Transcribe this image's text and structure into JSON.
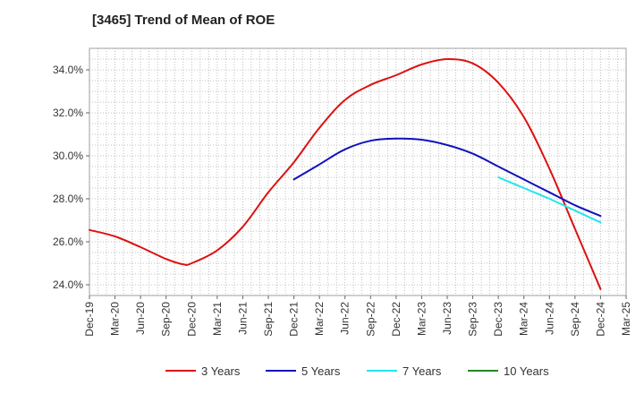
{
  "chart_data": {
    "type": "line",
    "title": "[3465]  Trend of Mean of ROE",
    "xlabel": "",
    "ylabel": "",
    "x_ticks": [
      "Dec-19",
      "Mar-20",
      "Jun-20",
      "Sep-20",
      "Dec-20",
      "Mar-21",
      "Jun-21",
      "Sep-21",
      "Dec-21",
      "Mar-22",
      "Jun-22",
      "Sep-22",
      "Dec-22",
      "Mar-23",
      "Jun-23",
      "Sep-23",
      "Dec-23",
      "Mar-24",
      "Jun-24",
      "Sep-24",
      "Dec-24",
      "Mar-25"
    ],
    "y_ticks": [
      "24.0%",
      "26.0%",
      "28.0%",
      "30.0%",
      "32.0%",
      "34.0%"
    ],
    "ylim": [
      23.5,
      35.0
    ],
    "grid": true,
    "legend_position": "bottom",
    "series": [
      {
        "name": "3 Years",
        "color": "#dd1111",
        "points": [
          [
            "Dec-19",
            26.55
          ],
          [
            "Mar-20",
            26.25
          ],
          [
            "Jun-20",
            25.75
          ],
          [
            "Sep-20",
            25.2
          ],
          [
            "Nov-20",
            24.95
          ],
          [
            "Dec-20",
            25.0
          ],
          [
            "Mar-21",
            25.6
          ],
          [
            "Jun-21",
            26.7
          ],
          [
            "Sep-21",
            28.3
          ],
          [
            "Dec-21",
            29.7
          ],
          [
            "Mar-22",
            31.3
          ],
          [
            "Jun-22",
            32.6
          ],
          [
            "Sep-22",
            33.3
          ],
          [
            "Dec-22",
            33.75
          ],
          [
            "Mar-23",
            34.25
          ],
          [
            "Jun-23",
            34.5
          ],
          [
            "Sep-23",
            34.3
          ],
          [
            "Dec-23",
            33.4
          ],
          [
            "Mar-24",
            31.8
          ],
          [
            "Jun-24",
            29.4
          ],
          [
            "Sep-24",
            26.6
          ],
          [
            "Dec-24",
            23.8
          ]
        ]
      },
      {
        "name": "5 Years",
        "color": "#1111bb",
        "points": [
          [
            "Dec-21",
            28.9
          ],
          [
            "Mar-22",
            29.6
          ],
          [
            "Jun-22",
            30.3
          ],
          [
            "Sep-22",
            30.7
          ],
          [
            "Dec-22",
            30.8
          ],
          [
            "Mar-23",
            30.75
          ],
          [
            "Jun-23",
            30.5
          ],
          [
            "Sep-23",
            30.1
          ],
          [
            "Dec-23",
            29.5
          ],
          [
            "Mar-24",
            28.9
          ],
          [
            "Jun-24",
            28.3
          ],
          [
            "Sep-24",
            27.7
          ],
          [
            "Dec-24",
            27.2
          ]
        ]
      },
      {
        "name": "7 Years",
        "color": "#22e5ee",
        "points": [
          [
            "Dec-23",
            29.0
          ],
          [
            "Mar-24",
            28.5
          ],
          [
            "Jun-24",
            28.0
          ],
          [
            "Sep-24",
            27.45
          ],
          [
            "Dec-24",
            26.9
          ]
        ]
      },
      {
        "name": "10 Years",
        "color": "#228822",
        "points": []
      }
    ]
  }
}
